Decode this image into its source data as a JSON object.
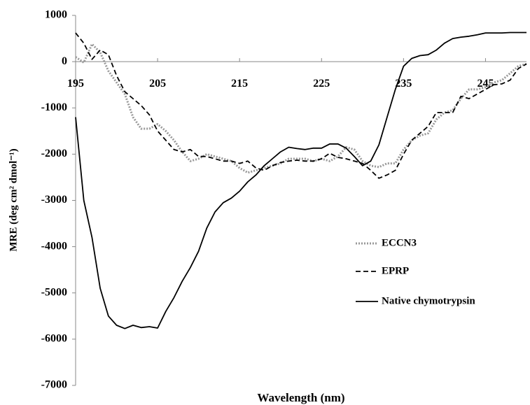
{
  "chart_data": {
    "type": "line",
    "x_label": "Wavelength (nm)",
    "y_label": "MRE (deg cm² dmol⁻¹)",
    "xlim": [
      195,
      250
    ],
    "ylim": [
      -7000,
      1000
    ],
    "xticks": [
      195,
      205,
      215,
      225,
      235,
      245
    ],
    "yticks": [
      -7000,
      -6000,
      -5000,
      -4000,
      -3000,
      -2000,
      -1000,
      0,
      1000
    ],
    "grid": false,
    "legend": "right",
    "x": [
      195,
      196,
      197,
      198,
      199,
      200,
      201,
      202,
      203,
      204,
      205,
      206,
      207,
      208,
      209,
      210,
      211,
      212,
      213,
      214,
      215,
      216,
      217,
      218,
      219,
      220,
      221,
      222,
      223,
      224,
      225,
      226,
      227,
      228,
      229,
      230,
      231,
      232,
      233,
      234,
      235,
      236,
      237,
      238,
      239,
      240,
      241,
      242,
      243,
      244,
      245,
      246,
      247,
      248,
      249,
      250
    ],
    "series": [
      {
        "name": "ECCN3",
        "color": "#999999",
        "line_style": "dotted",
        "values": [
          100,
          -20,
          380,
          200,
          -200,
          -450,
          -700,
          -1200,
          -1450,
          -1450,
          -1350,
          -1500,
          -1700,
          -1950,
          -2150,
          -2100,
          -2000,
          -2050,
          -2100,
          -2150,
          -2300,
          -2400,
          -2350,
          -2300,
          -2250,
          -2200,
          -2100,
          -2100,
          -2100,
          -2150,
          -2100,
          -2150,
          -2050,
          -1850,
          -1900,
          -2150,
          -2250,
          -2280,
          -2200,
          -2200,
          -1900,
          -1700,
          -1600,
          -1550,
          -1250,
          -1100,
          -1050,
          -800,
          -600,
          -600,
          -550,
          -450,
          -400,
          -250,
          -100,
          -50
        ]
      },
      {
        "name": "EPRP",
        "color": "#000000",
        "line_style": "dashed",
        "values": [
          620,
          400,
          50,
          250,
          150,
          -300,
          -650,
          -800,
          -950,
          -1150,
          -1500,
          -1700,
          -1900,
          -1950,
          -1900,
          -2050,
          -2050,
          -2100,
          -2150,
          -2150,
          -2200,
          -2150,
          -2300,
          -2350,
          -2250,
          -2180,
          -2150,
          -2130,
          -2150,
          -2150,
          -2100,
          -1980,
          -2070,
          -2100,
          -2150,
          -2200,
          -2350,
          -2520,
          -2450,
          -2350,
          -2000,
          -1700,
          -1550,
          -1400,
          -1100,
          -1100,
          -1100,
          -750,
          -800,
          -700,
          -600,
          -500,
          -480,
          -400,
          -150,
          -50
        ]
      },
      {
        "name": "Native chymotrypsin",
        "color": "#000000",
        "line_style": "solid",
        "values": [
          -1200,
          -3000,
          -3800,
          -4900,
          -5500,
          -5700,
          -5770,
          -5700,
          -5750,
          -5730,
          -5760,
          -5400,
          -5100,
          -4750,
          -4450,
          -4100,
          -3600,
          -3250,
          -3050,
          -2950,
          -2800,
          -2600,
          -2450,
          -2250,
          -2100,
          -1950,
          -1850,
          -1880,
          -1900,
          -1870,
          -1870,
          -1780,
          -1780,
          -1870,
          -2050,
          -2250,
          -2150,
          -1800,
          -1200,
          -600,
          -100,
          70,
          130,
          150,
          250,
          400,
          500,
          530,
          550,
          580,
          620,
          620,
          620,
          630,
          630,
          630
        ]
      }
    ]
  }
}
